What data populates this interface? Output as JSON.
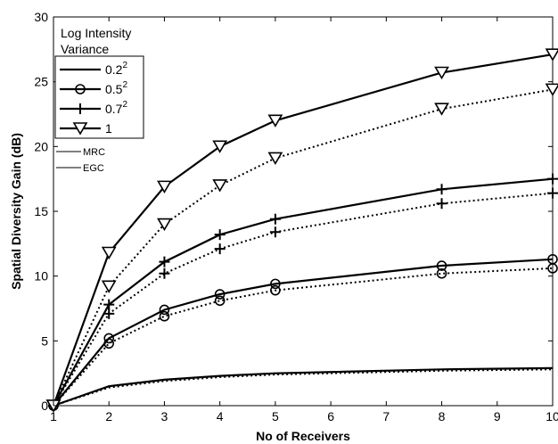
{
  "chart_data": {
    "type": "line",
    "xlabel": "No of Receivers",
    "ylabel": "Spatial Diversity Gain  (dB)",
    "xlim": [
      1,
      10
    ],
    "ylim": [
      0,
      30
    ],
    "xticks": [
      1,
      2,
      3,
      4,
      5,
      6,
      7,
      8,
      9,
      10
    ],
    "yticks": [
      0,
      5,
      10,
      15,
      20,
      25,
      30
    ],
    "grid": false,
    "legend_position": "top-left",
    "legend_title": [
      "Log Intensity",
      "Variance"
    ],
    "series": [
      {
        "name": "0.2",
        "sup": "2",
        "marker": "none",
        "dash": "solid",
        "x": [
          1,
          2,
          3,
          4,
          5,
          8,
          10
        ],
        "y": [
          0,
          1.5,
          2.0,
          2.3,
          2.5,
          2.8,
          2.9
        ]
      },
      {
        "name": "0.2",
        "sup": "2",
        "marker": "none",
        "dash": "dotted",
        "x": [
          1,
          2,
          3,
          4,
          5,
          8,
          10
        ],
        "y": [
          0,
          1.4,
          1.9,
          2.2,
          2.4,
          2.7,
          2.8
        ]
      },
      {
        "name": "0.5",
        "sup": "2",
        "marker": "circle",
        "dash": "solid",
        "x": [
          1,
          2,
          3,
          4,
          5,
          8,
          10
        ],
        "y": [
          0,
          5.2,
          7.4,
          8.6,
          9.4,
          10.8,
          11.3
        ]
      },
      {
        "name": "0.5",
        "sup": "2",
        "marker": "circle",
        "dash": "dotted",
        "x": [
          1,
          2,
          3,
          4,
          5,
          8,
          10
        ],
        "y": [
          0,
          4.8,
          6.9,
          8.1,
          8.9,
          10.2,
          10.6
        ]
      },
      {
        "name": "0.7",
        "sup": "2",
        "marker": "plus",
        "dash": "solid",
        "x": [
          1,
          2,
          3,
          4,
          5,
          8,
          10
        ],
        "y": [
          0,
          7.8,
          11.1,
          13.2,
          14.4,
          16.7,
          17.5
        ]
      },
      {
        "name": "0.7",
        "sup": "2",
        "marker": "plus",
        "dash": "dotted",
        "x": [
          1,
          2,
          3,
          4,
          5,
          8,
          10
        ],
        "y": [
          0,
          7.1,
          10.2,
          12.1,
          13.4,
          15.6,
          16.4
        ]
      },
      {
        "name": "1",
        "sup": "",
        "marker": "triangle-down",
        "dash": "solid",
        "x": [
          1,
          2,
          3,
          4,
          5,
          8,
          10
        ],
        "y": [
          0,
          11.8,
          16.9,
          20.0,
          22.0,
          25.7,
          27.1
        ]
      },
      {
        "name": "1",
        "sup": "",
        "marker": "triangle-down",
        "dash": "dotted",
        "x": [
          1,
          2,
          3,
          4,
          5,
          8,
          10
        ],
        "y": [
          0,
          9.2,
          14.0,
          17.0,
          19.1,
          22.9,
          24.4
        ]
      }
    ],
    "legend_items": [
      {
        "label": "0.2",
        "sup": "2",
        "marker": "none"
      },
      {
        "label": "0.5",
        "sup": "2",
        "marker": "circle"
      },
      {
        "label": "0.7",
        "sup": "2",
        "marker": "plus"
      },
      {
        "label": "1",
        "sup": "",
        "marker": "triangle-down"
      }
    ],
    "line_style_legend": [
      {
        "label": "MRC",
        "dash": "solid"
      },
      {
        "label": "EGC",
        "dash": "solid"
      }
    ]
  }
}
